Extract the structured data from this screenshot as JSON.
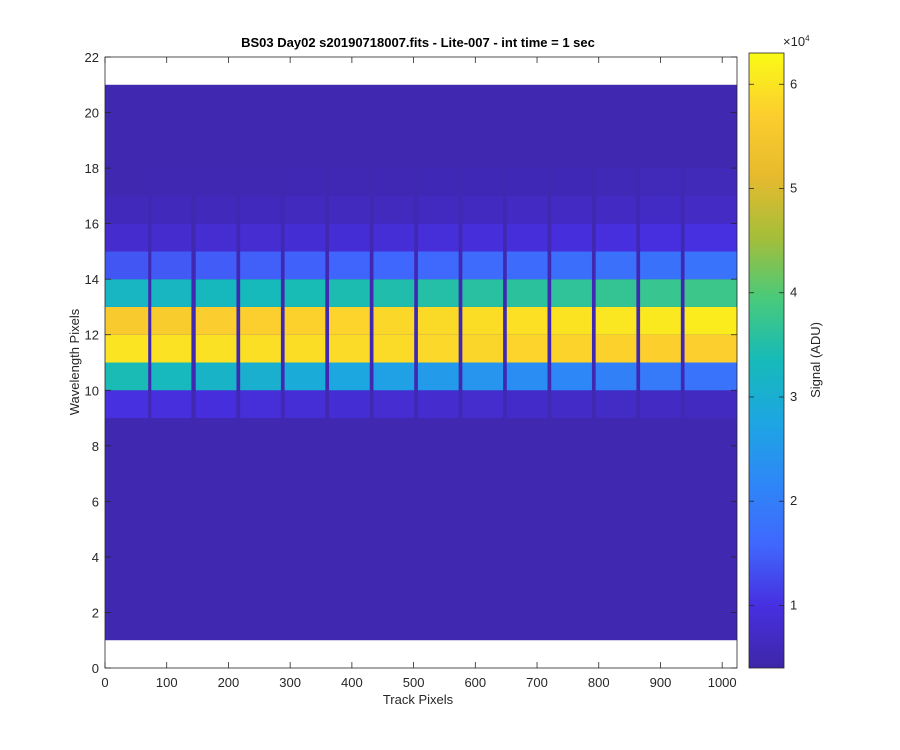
{
  "chart_data": {
    "type": "heatmap",
    "title": "BS03 Day02  s20190718007.fits - Lite-007 - int time = 1 sec",
    "xlabel": "Track Pixels",
    "ylabel": "Wavelength Pixels",
    "xlim": [
      0,
      1024
    ],
    "ylim": [
      0,
      22
    ],
    "x_ticks": [
      0,
      100,
      200,
      300,
      400,
      500,
      600,
      700,
      800,
      900,
      1000
    ],
    "y_ticks": [
      0,
      2,
      4,
      6,
      8,
      10,
      12,
      14,
      16,
      18,
      20
    ],
    "image_extent": {
      "x": [
        0,
        1024
      ],
      "y": [
        1,
        21
      ]
    },
    "background_signal": 5000,
    "colormap": "parula",
    "colorbar": {
      "label": "Signal (ADU)",
      "range": [
        4000,
        63000
      ],
      "ticks": [
        1,
        2,
        3,
        4,
        5,
        6
      ],
      "tick_scale_label": "×10",
      "tick_scale_exponent": "4",
      "tick_multiplier": 10000
    },
    "fibers": [
      {
        "x": [
          0,
          70
        ]
      },
      {
        "x": [
          75,
          140
        ]
      },
      {
        "x": [
          147,
          213
        ]
      },
      {
        "x": [
          219,
          285
        ]
      },
      {
        "x": [
          291,
          357
        ]
      },
      {
        "x": [
          363,
          429
        ]
      },
      {
        "x": [
          435,
          501
        ]
      },
      {
        "x": [
          507,
          573
        ]
      },
      {
        "x": [
          579,
          645
        ]
      },
      {
        "x": [
          651,
          717
        ]
      },
      {
        "x": [
          723,
          789
        ]
      },
      {
        "x": [
          795,
          861
        ]
      },
      {
        "x": [
          867,
          933
        ]
      },
      {
        "x": [
          939,
          1024
        ]
      }
    ],
    "row_profile_left": [
      {
        "y": 9,
        "value": 10000
      },
      {
        "y": 10,
        "value": 34000
      },
      {
        "y": 11,
        "value": 60000
      },
      {
        "y": 12,
        "value": 56000
      },
      {
        "y": 13,
        "value": 32000
      },
      {
        "y": 14,
        "value": 14000
      },
      {
        "y": 15,
        "value": 8000
      },
      {
        "y": 16,
        "value": 6000
      }
    ],
    "row_profile_right": [
      {
        "y": 9,
        "value": 6500
      },
      {
        "y": 10,
        "value": 18000
      },
      {
        "y": 11,
        "value": 57000
      },
      {
        "y": 12,
        "value": 61000
      },
      {
        "y": 13,
        "value": 38000
      },
      {
        "y": 14,
        "value": 18000
      },
      {
        "y": 15,
        "value": 10000
      },
      {
        "y": 16,
        "value": 7000
      },
      {
        "y": 17,
        "value": 5800
      }
    ]
  }
}
